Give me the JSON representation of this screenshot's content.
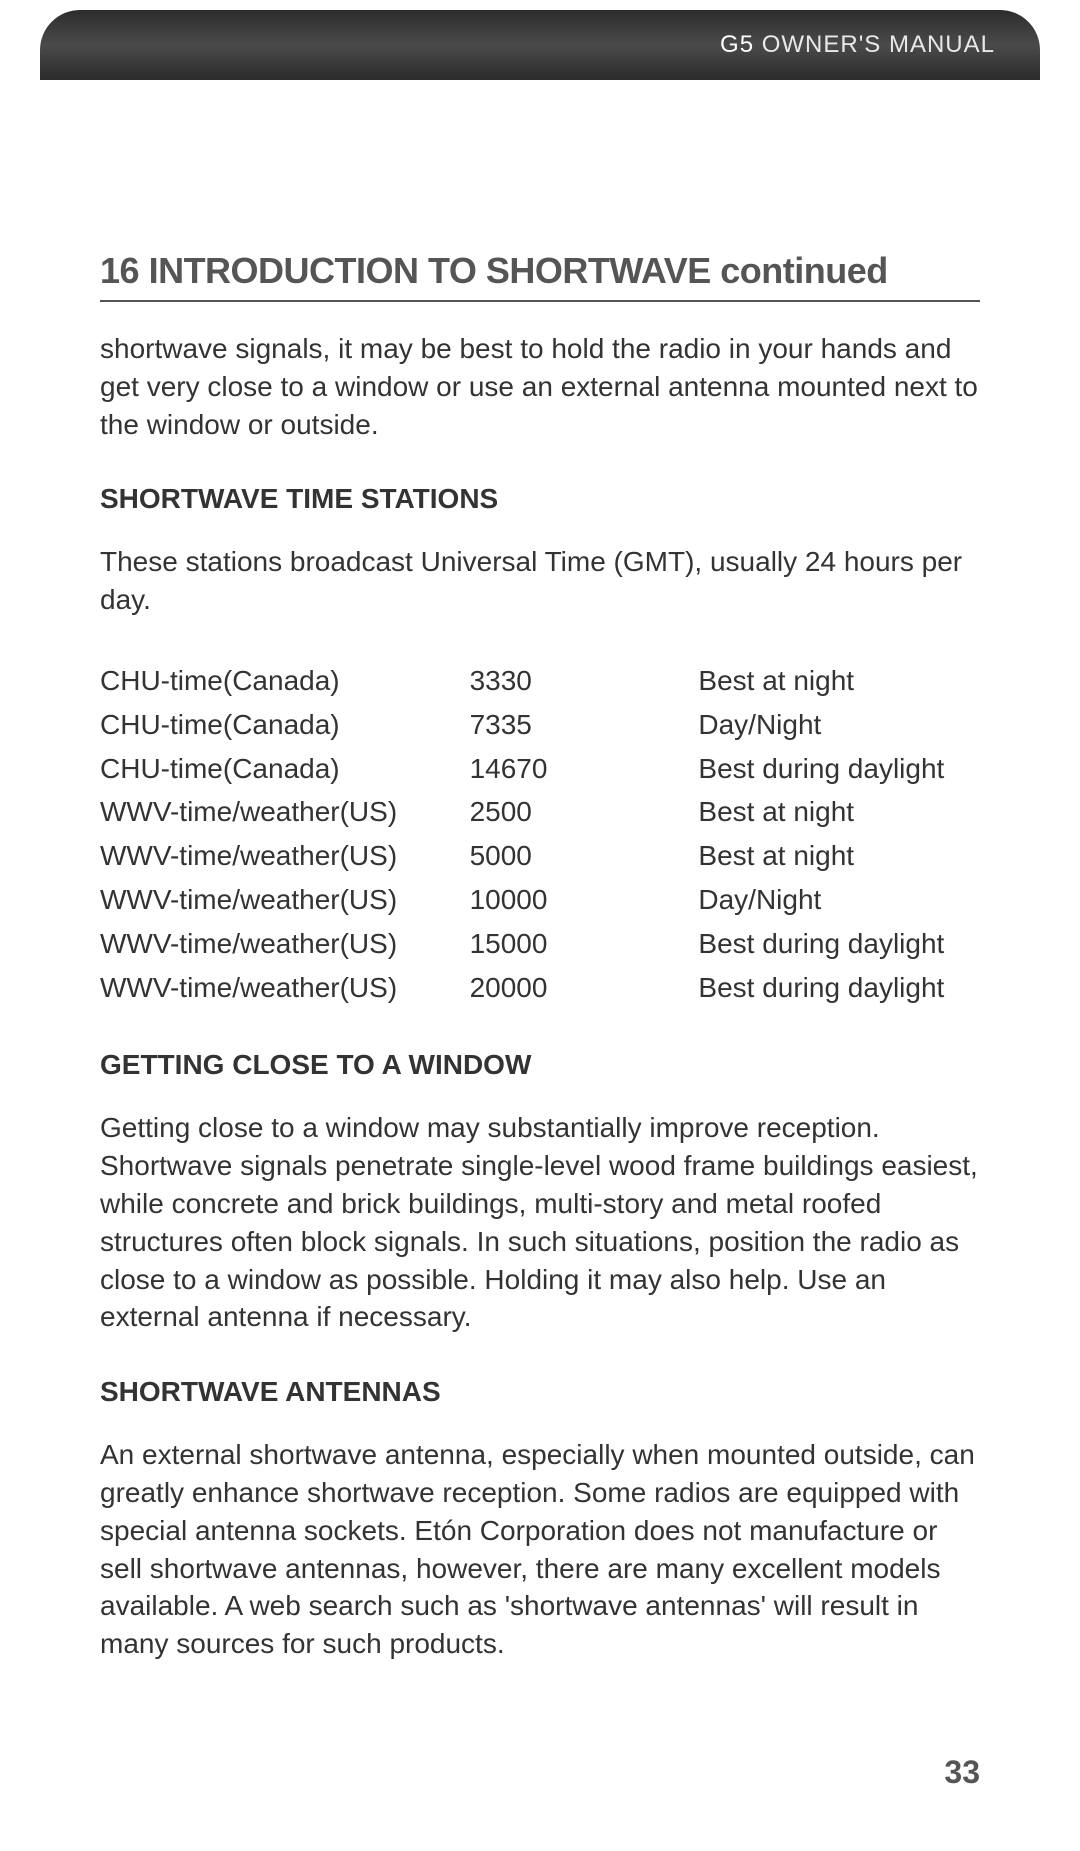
{
  "header": {
    "brand": "G5",
    "subtitle": "OWNER'S MANUAL"
  },
  "section": {
    "number": "16",
    "title": "INTRODUCTION TO SHORTWAVE continued"
  },
  "intro_paragraph": "shortwave signals, it may be best to hold the radio in your hands and get very close to a window or use an external antenna mounted next to the window or outside.",
  "time_stations": {
    "heading": "SHORTWAVE TIME STATIONS",
    "description": "These stations broadcast Universal Time (GMT), usually 24 hours per day.",
    "rows": [
      {
        "station": "CHU-time(Canada)",
        "freq": "3330",
        "note": "Best at night"
      },
      {
        "station": "CHU-time(Canada)",
        "freq": "7335",
        "note": "Day/Night"
      },
      {
        "station": "CHU-time(Canada)",
        "freq": "14670",
        "note": "Best during daylight"
      },
      {
        "station": "WWV-time/weather(US)",
        "freq": "2500",
        "note": "Best at night"
      },
      {
        "station": "WWV-time/weather(US)",
        "freq": "5000",
        "note": "Best at night"
      },
      {
        "station": "WWV-time/weather(US)",
        "freq": "10000",
        "note": "Day/Night"
      },
      {
        "station": "WWV-time/weather(US)",
        "freq": "15000",
        "note": "Best during daylight"
      },
      {
        "station": "WWV-time/weather(US)",
        "freq": "20000",
        "note": "Best during daylight"
      }
    ]
  },
  "window_section": {
    "heading": "GETTING CLOSE TO A WINDOW",
    "body": "Getting close to a window may substantially improve reception. Shortwave signals penetrate single-level wood frame buildings easiest, while concrete and brick buildings, multi-story and metal roofed structures often block signals. In such situations, position the radio as close to a window as possible. Holding it may also help. Use an external antenna if necessary."
  },
  "antenna_section": {
    "heading": "SHORTWAVE ANTENNAS",
    "body": "An external shortwave antenna, especially when mounted outside, can greatly enhance shortwave reception. Some radios are equipped with special antenna sockets. Etón Corporation does not manufacture or sell shortwave antennas, however, there are many excellent models available. A web search such as 'shortwave antennas' will result in many sources for such products."
  },
  "page_number": "33",
  "colors": {
    "text": "#333333",
    "heading_gray": "#555555",
    "header_gradient_dark": "#2c2c2c",
    "header_gradient_light": "#4a4a4a",
    "background": "#ffffff"
  },
  "font_sizes_pt": {
    "section_title": 27,
    "body": 21,
    "sub_heading": 21,
    "header": 18,
    "page_number": 24
  }
}
